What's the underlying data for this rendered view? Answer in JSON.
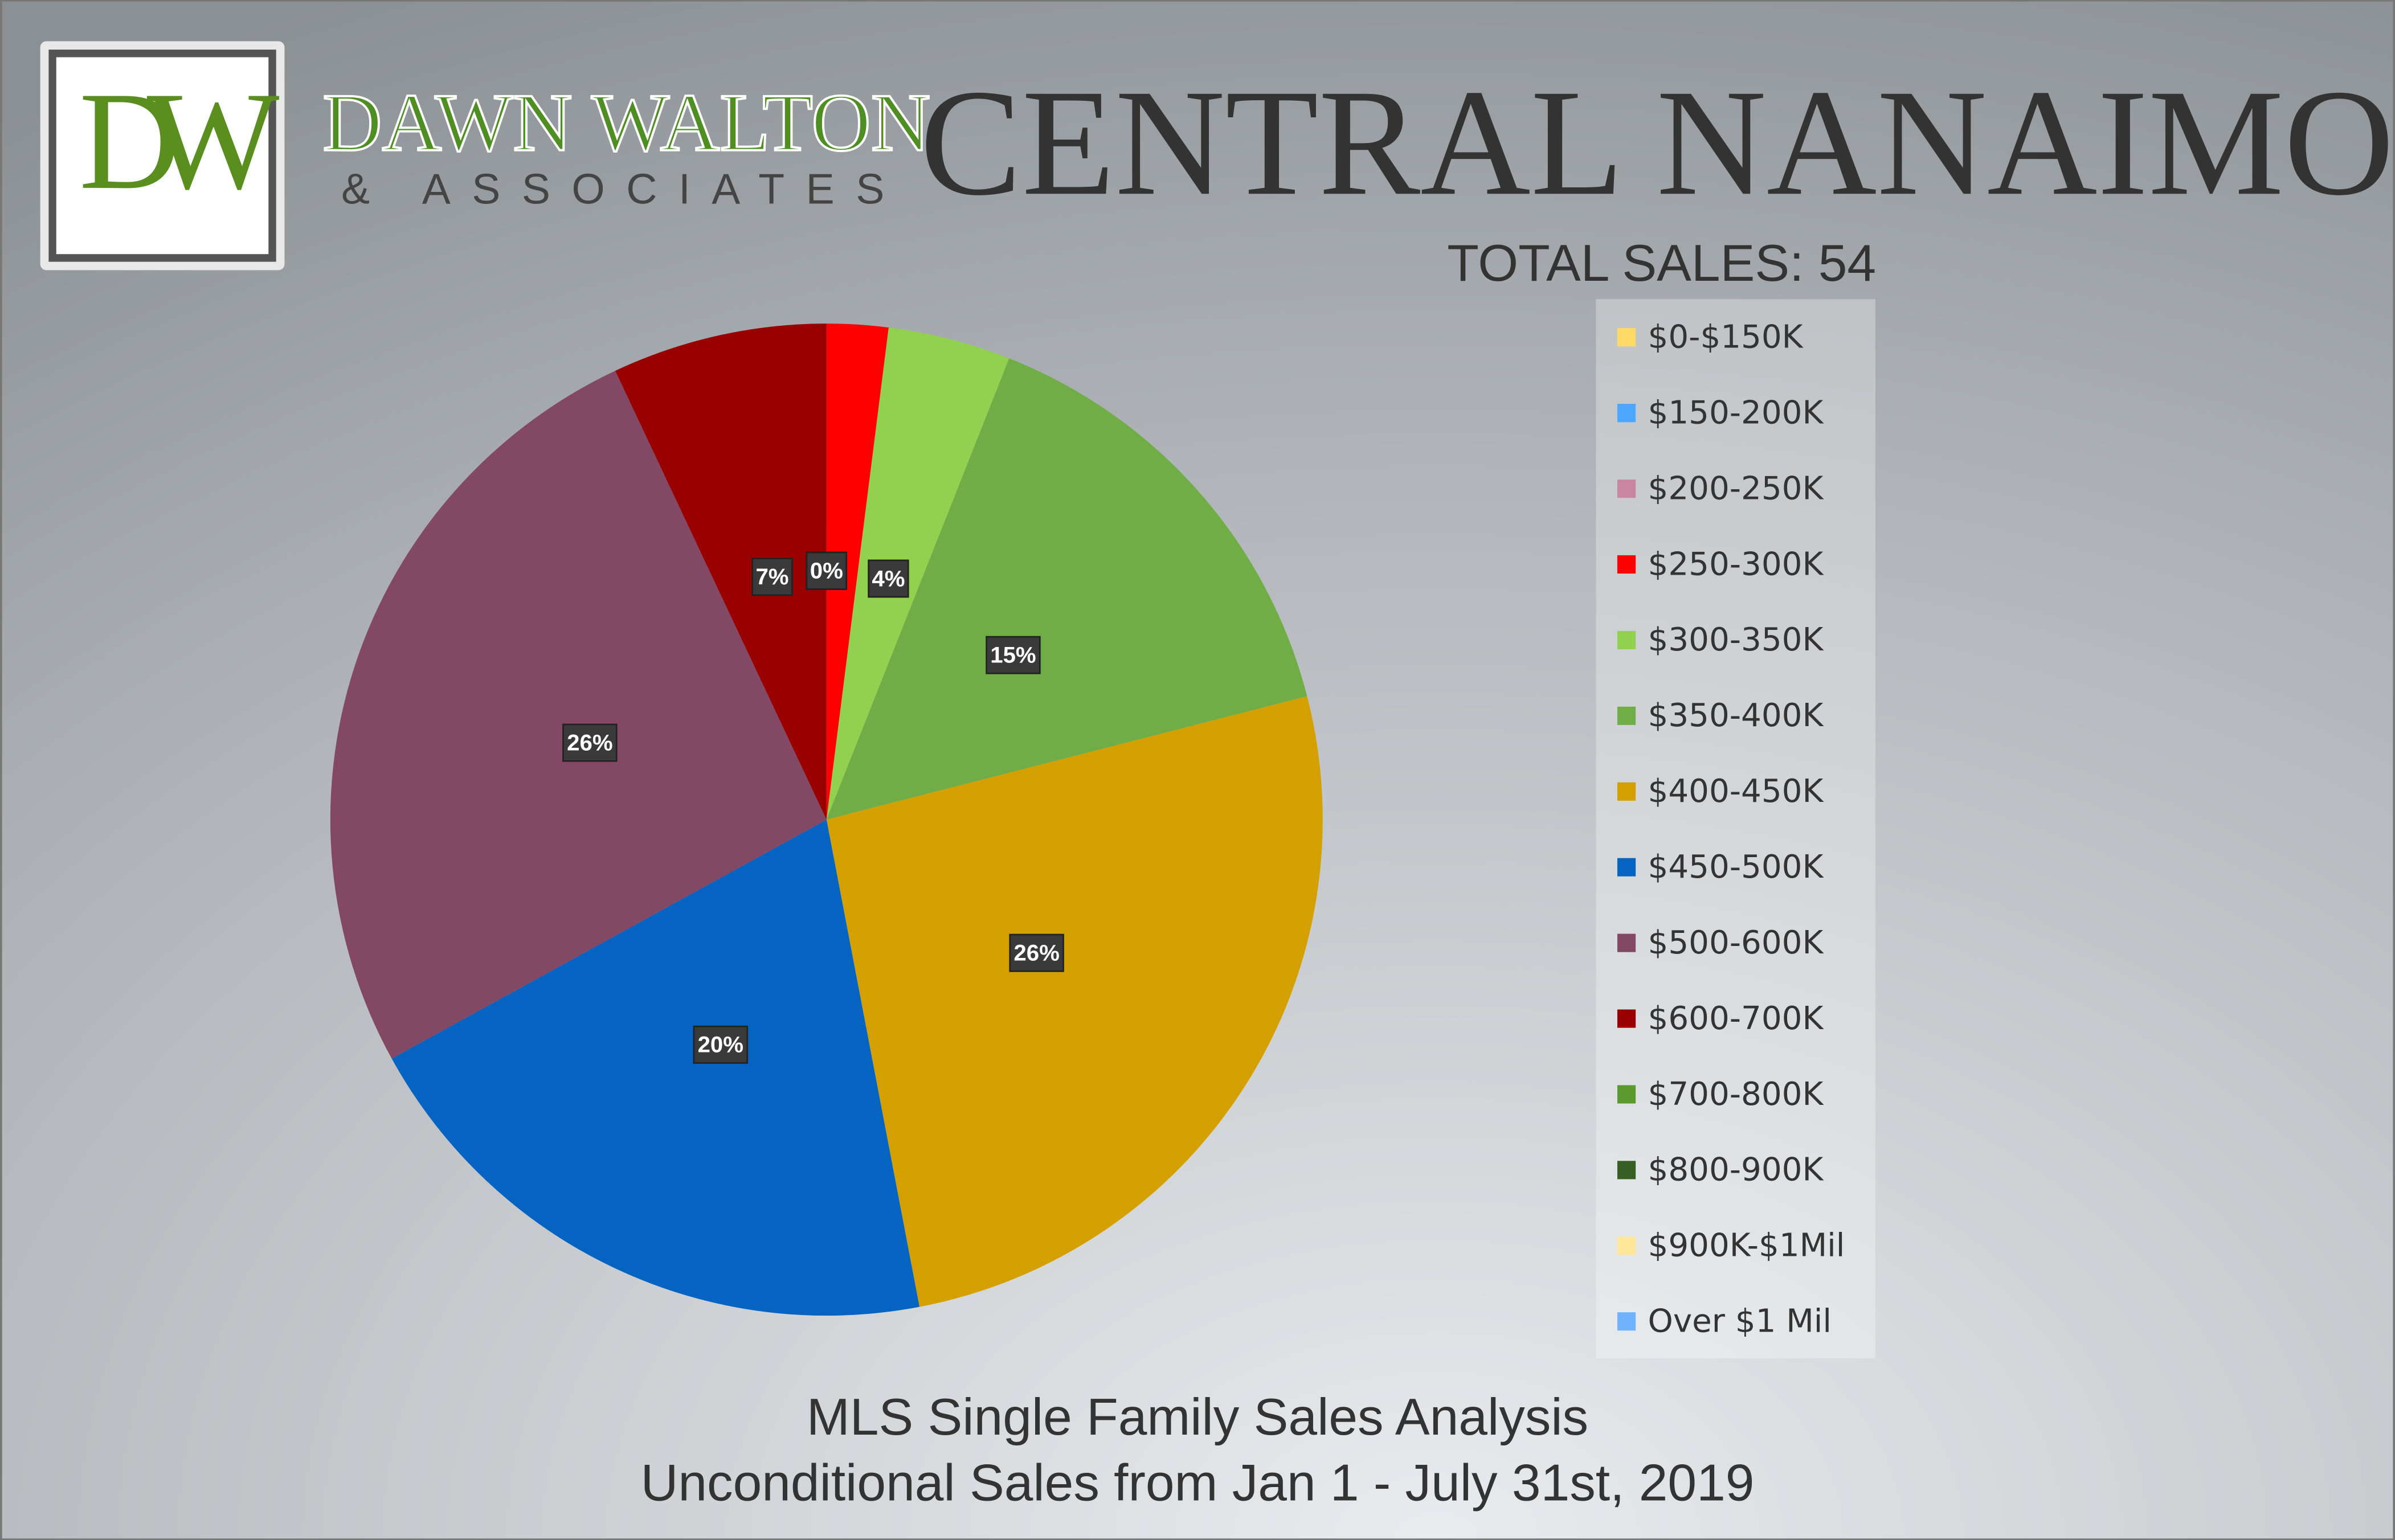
{
  "branding": {
    "initials": "DW",
    "name": "DAWN WALTON",
    "tagline": "& ASSOCIATES"
  },
  "chart_data": {
    "type": "pie",
    "title": "Central Nanaimo",
    "subtitle": "TOTAL SALES: 54",
    "footer": [
      "MLS Single Family Sales Analysis",
      "Unconditional Sales from Jan 1 - July 31st, 2019"
    ],
    "categories": [
      "$0-$150K",
      "$150-200K",
      "$200-250K",
      "$250-300K",
      "$300-350K",
      "$350-400K",
      "$400-450K",
      "$450-500K",
      "$500-600K",
      "$600-700K",
      "$700-800K",
      "$800-900K",
      "$900K-$1Mil",
      "Over $1 Mil"
    ],
    "values": [
      0,
      0,
      0,
      2,
      4,
      15,
      26,
      20,
      26,
      7,
      0,
      0,
      0,
      0
    ],
    "value_labels": [
      "0%",
      "0%",
      "0%",
      null,
      "4%",
      "15%",
      "26%",
      "20%",
      "26%",
      "7%",
      "0%",
      "0%",
      "0%",
      "0%"
    ],
    "colors": [
      "#ffd966",
      "#4da6ff",
      "#c9869f",
      "#ff0000",
      "#92d050",
      "#70ad47",
      "#d4a000",
      "#0563c1",
      "#834864",
      "#990000",
      "#5b9a2f",
      "#375f23",
      "#ffe699",
      "#6fb3ff"
    ],
    "legend": "right"
  }
}
